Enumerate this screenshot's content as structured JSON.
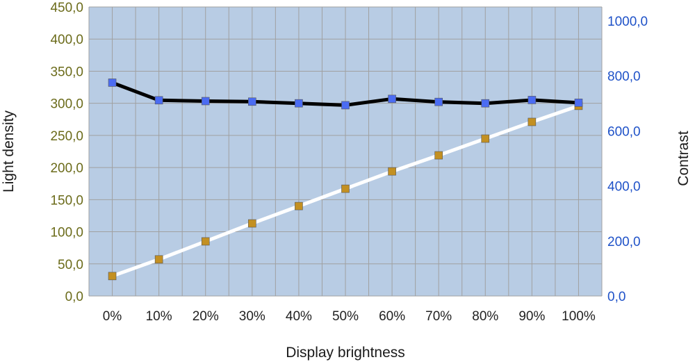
{
  "chart_data": {
    "type": "line",
    "title": "",
    "xlabel": "Display brightness",
    "ylabel_left": "Light density",
    "ylabel_right": "Contrast",
    "categories": [
      "0%",
      "10%",
      "20%",
      "30%",
      "40%",
      "50%",
      "60%",
      "70%",
      "80%",
      "90%",
      "100%"
    ],
    "y_left": {
      "min": 0,
      "max": 450,
      "ticks": [
        0,
        50,
        100,
        150,
        200,
        250,
        300,
        350,
        400,
        450
      ],
      "tick_labels": [
        "0,0",
        "50,0",
        "100,0",
        "150,0",
        "200,0",
        "250,0",
        "300,0",
        "350,0",
        "400,0",
        "450,0"
      ]
    },
    "y_right": {
      "min": 0,
      "max": 1050,
      "ticks": [
        0,
        200,
        400,
        600,
        800,
        1000
      ],
      "tick_labels": [
        "0,0",
        "200,0",
        "400,0",
        "600,0",
        "800,0",
        "1000,0"
      ]
    },
    "grid": true,
    "series": [
      {
        "axis": "left",
        "values": [
          31,
          57,
          85,
          113,
          140,
          167,
          194,
          219,
          245,
          271,
          296
        ],
        "line_color": "#ffffff",
        "marker_color": "#c39022"
      },
      {
        "axis": "right",
        "values": [
          775,
          711,
          708,
          706,
          700,
          693,
          716,
          705,
          700,
          712,
          702
        ],
        "line_color": "#000000",
        "marker_color": "#4b6cf2"
      }
    ],
    "colors": {
      "plot_background": "#b8cce4",
      "gridline": "#a0a0a0",
      "left_tick_color": "#6b6b1a",
      "right_tick_color": "#1f52c8"
    }
  }
}
